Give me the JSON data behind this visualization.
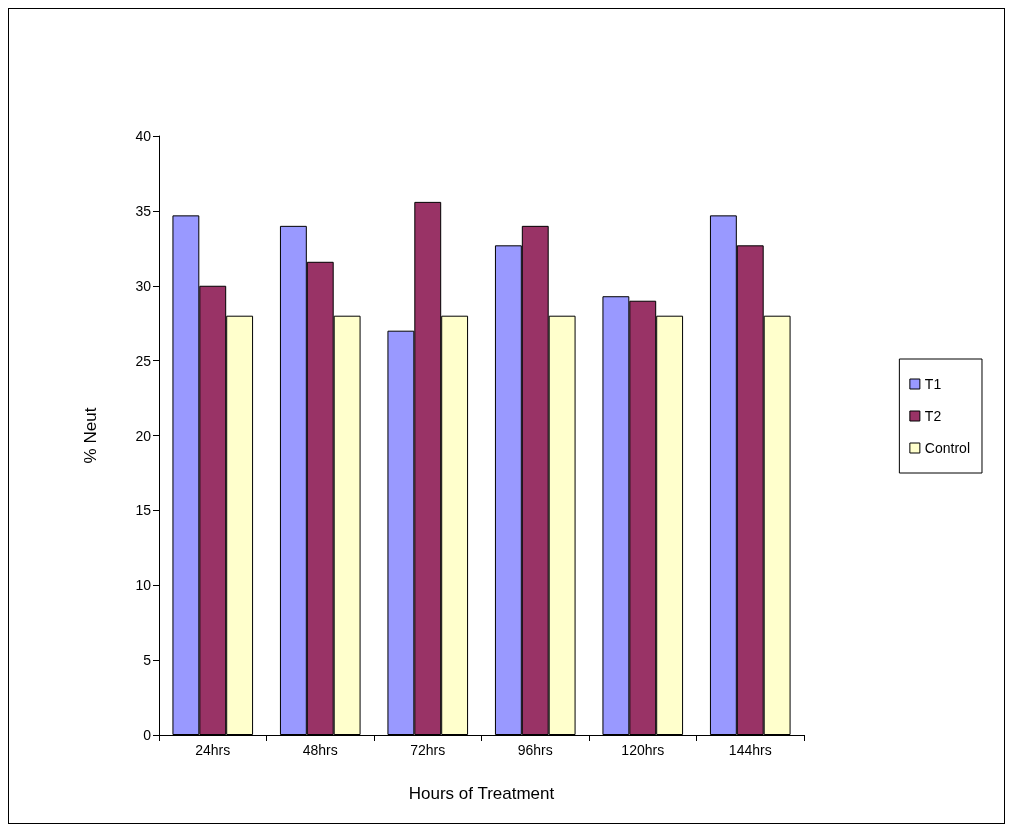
{
  "chart_data": {
    "type": "bar",
    "xlabel": "Hours of Treatment",
    "ylabel": "% Neut",
    "categories": [
      "24hrs",
      "48hrs",
      "72hrs",
      "96hrs",
      "120hrs",
      "144hrs"
    ],
    "series": [
      {
        "name": "T1",
        "color": "#9999ff",
        "values": [
          34.7,
          34,
          27,
          32.7,
          29.3,
          34.7
        ]
      },
      {
        "name": "T2",
        "color": "#993366",
        "values": [
          30,
          31.6,
          35.6,
          34,
          29,
          32.7
        ]
      },
      {
        "name": "Control",
        "color": "#ffffcc",
        "values": [
          28,
          28,
          28,
          28,
          28,
          28
        ]
      }
    ],
    "ylim": [
      0,
      40
    ],
    "yticks": [
      0,
      5,
      10,
      15,
      20,
      25,
      30,
      35,
      40
    ],
    "grid": false,
    "legend": "right"
  }
}
